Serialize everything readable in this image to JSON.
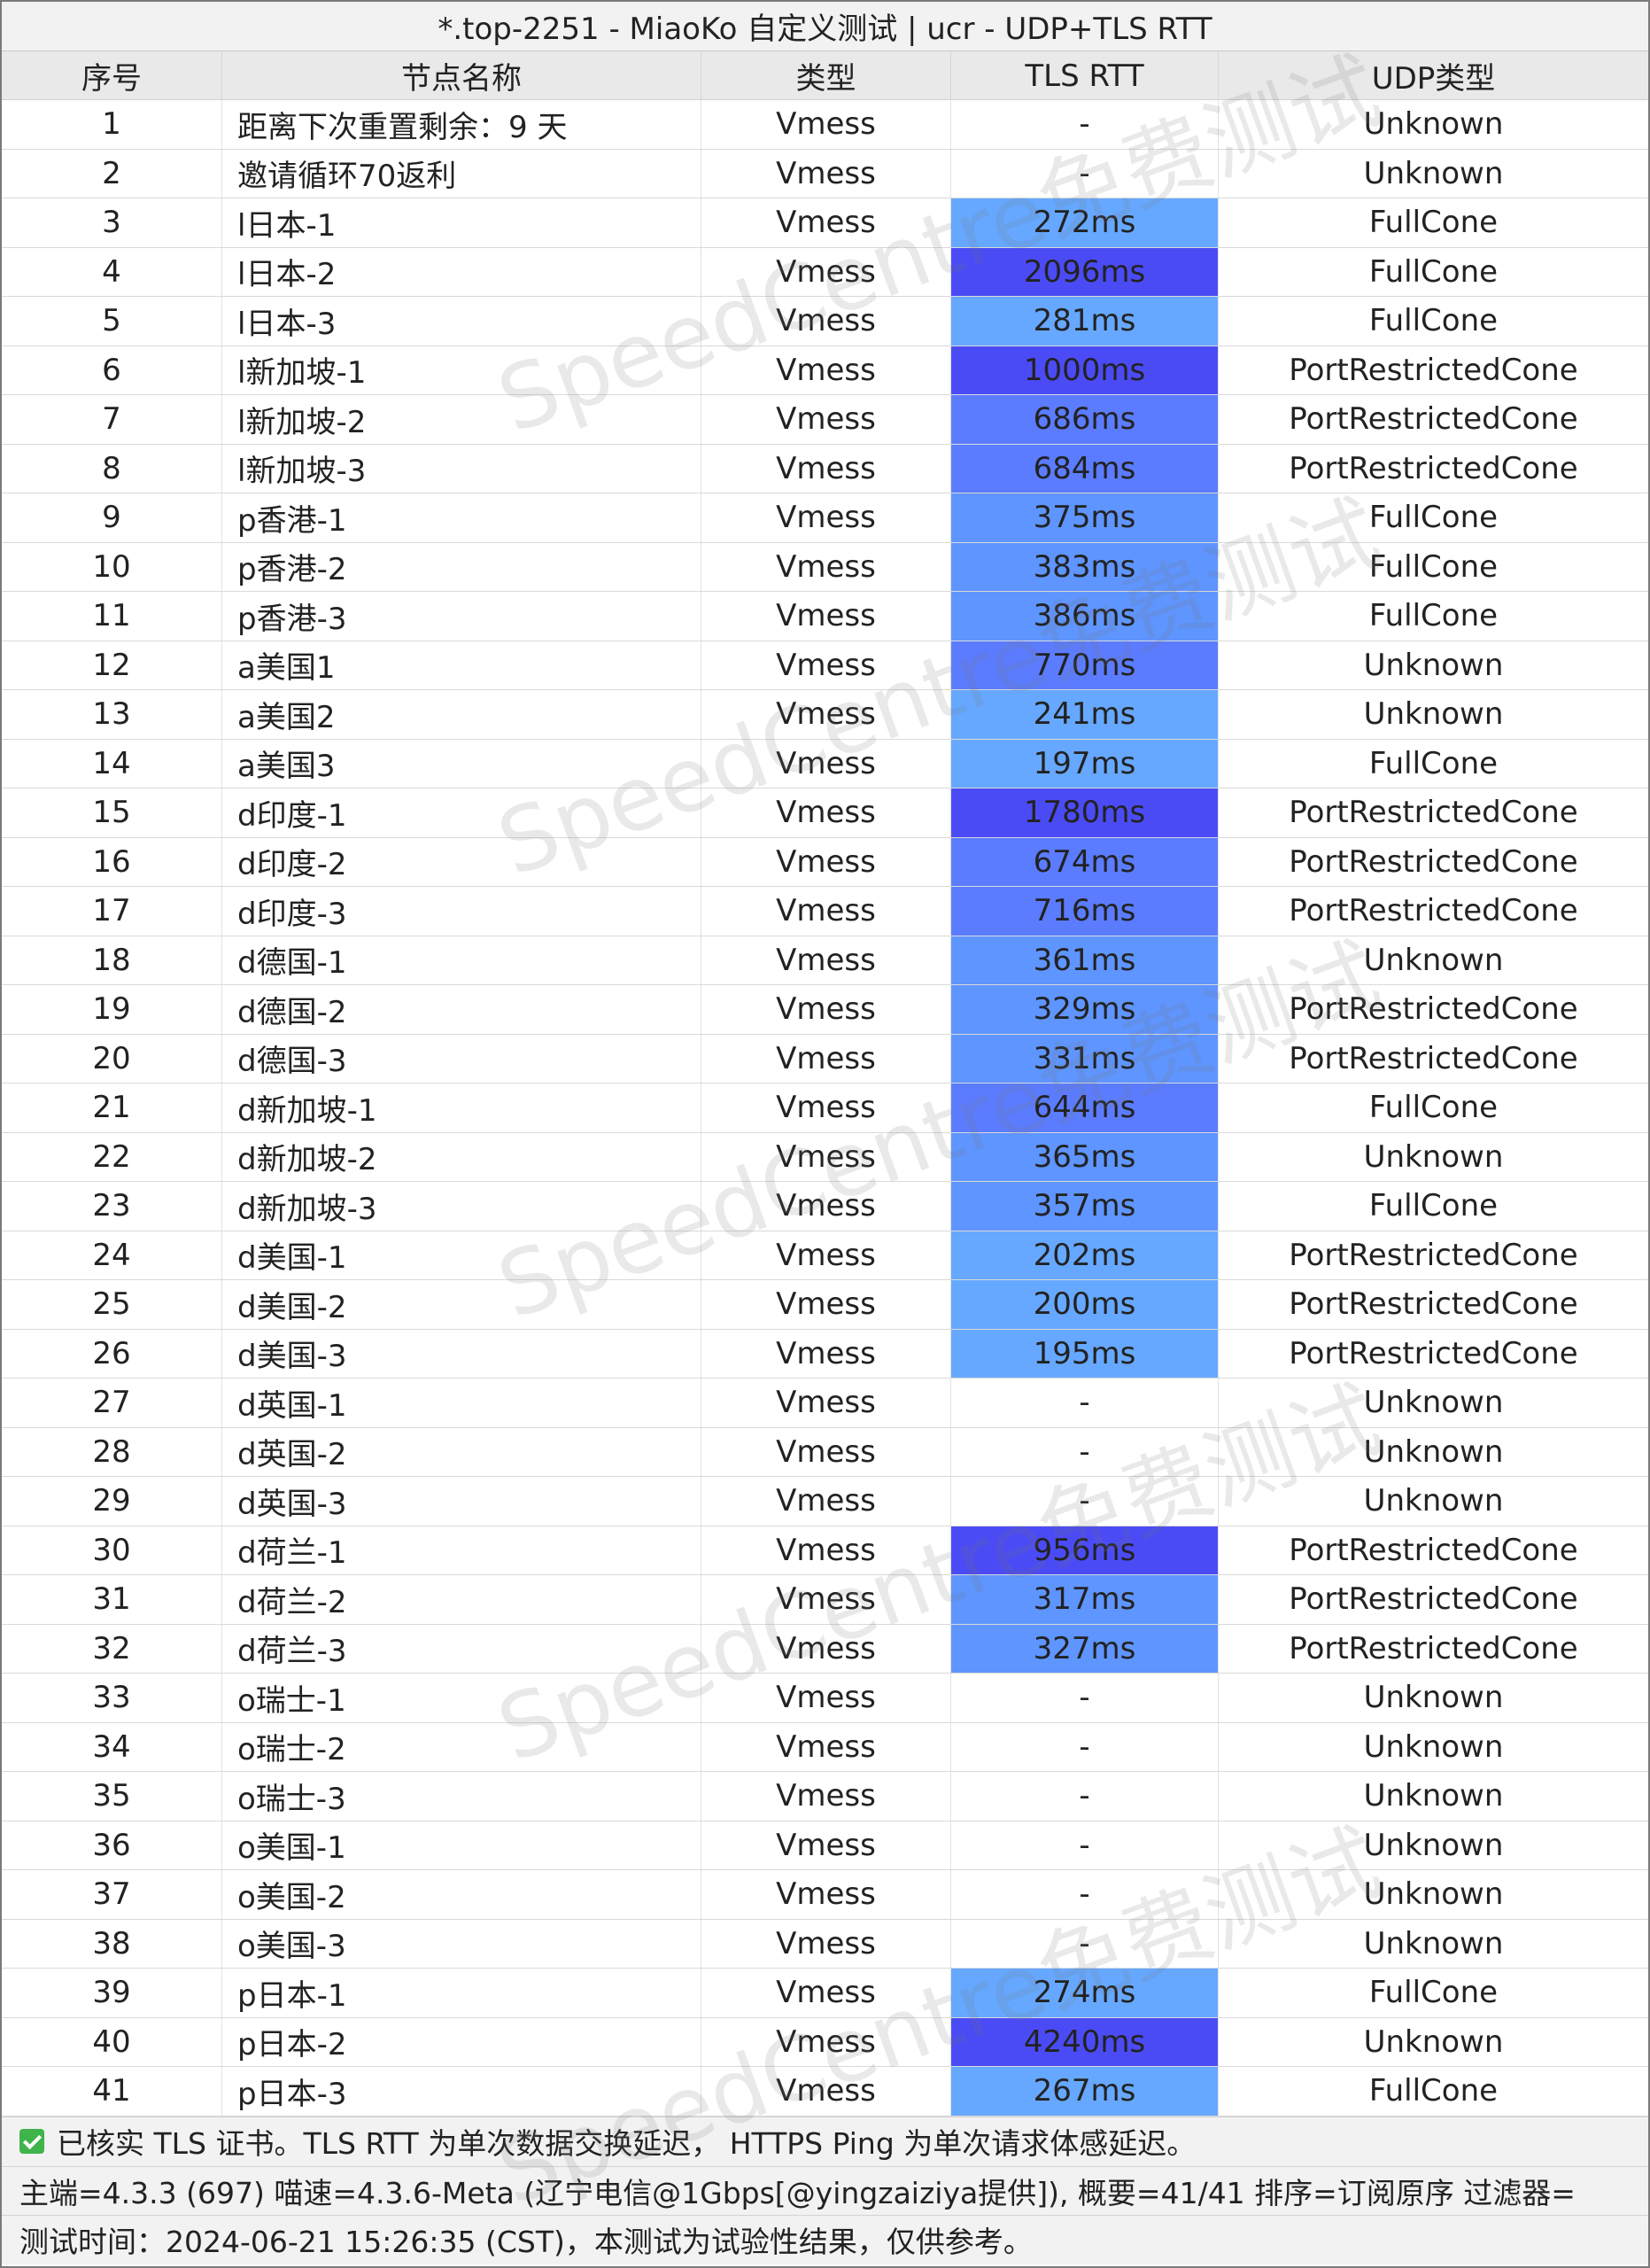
{
  "title": "*.top-2251 - MiaoKo 自定义测试 | ucr - UDP+TLS RTT",
  "headers": {
    "idx": "序号",
    "name": "节点名称",
    "type": "类型",
    "rtt": "TLS RTT",
    "udp": "UDP类型"
  },
  "rows": [
    {
      "idx": "1",
      "name": "距离下次重置剩余：9 天",
      "type": "Vmess",
      "rtt": "-",
      "udp": "Unknown"
    },
    {
      "idx": "2",
      "name": "邀请循环70返利",
      "type": "Vmess",
      "rtt": "-",
      "udp": "Unknown"
    },
    {
      "idx": "3",
      "name": "l日本-1",
      "type": "Vmess",
      "rtt": "272ms",
      "udp": "FullCone"
    },
    {
      "idx": "4",
      "name": "l日本-2",
      "type": "Vmess",
      "rtt": "2096ms",
      "udp": "FullCone"
    },
    {
      "idx": "5",
      "name": "l日本-3",
      "type": "Vmess",
      "rtt": "281ms",
      "udp": "FullCone"
    },
    {
      "idx": "6",
      "name": "l新加坡-1",
      "type": "Vmess",
      "rtt": "1000ms",
      "udp": "PortRestrictedCone"
    },
    {
      "idx": "7",
      "name": "l新加坡-2",
      "type": "Vmess",
      "rtt": "686ms",
      "udp": "PortRestrictedCone"
    },
    {
      "idx": "8",
      "name": "l新加坡-3",
      "type": "Vmess",
      "rtt": "684ms",
      "udp": "PortRestrictedCone"
    },
    {
      "idx": "9",
      "name": "p香港-1",
      "type": "Vmess",
      "rtt": "375ms",
      "udp": "FullCone"
    },
    {
      "idx": "10",
      "name": "p香港-2",
      "type": "Vmess",
      "rtt": "383ms",
      "udp": "FullCone"
    },
    {
      "idx": "11",
      "name": "p香港-3",
      "type": "Vmess",
      "rtt": "386ms",
      "udp": "FullCone"
    },
    {
      "idx": "12",
      "name": "a美国1",
      "type": "Vmess",
      "rtt": "770ms",
      "udp": "Unknown"
    },
    {
      "idx": "13",
      "name": "a美国2",
      "type": "Vmess",
      "rtt": "241ms",
      "udp": "Unknown"
    },
    {
      "idx": "14",
      "name": "a美国3",
      "type": "Vmess",
      "rtt": "197ms",
      "udp": "FullCone"
    },
    {
      "idx": "15",
      "name": "d印度-1",
      "type": "Vmess",
      "rtt": "1780ms",
      "udp": "PortRestrictedCone"
    },
    {
      "idx": "16",
      "name": "d印度-2",
      "type": "Vmess",
      "rtt": "674ms",
      "udp": "PortRestrictedCone"
    },
    {
      "idx": "17",
      "name": "d印度-3",
      "type": "Vmess",
      "rtt": "716ms",
      "udp": "PortRestrictedCone"
    },
    {
      "idx": "18",
      "name": "d德国-1",
      "type": "Vmess",
      "rtt": "361ms",
      "udp": "Unknown"
    },
    {
      "idx": "19",
      "name": "d德国-2",
      "type": "Vmess",
      "rtt": "329ms",
      "udp": "PortRestrictedCone"
    },
    {
      "idx": "20",
      "name": "d德国-3",
      "type": "Vmess",
      "rtt": "331ms",
      "udp": "PortRestrictedCone"
    },
    {
      "idx": "21",
      "name": "d新加坡-1",
      "type": "Vmess",
      "rtt": "644ms",
      "udp": "FullCone"
    },
    {
      "idx": "22",
      "name": "d新加坡-2",
      "type": "Vmess",
      "rtt": "365ms",
      "udp": "Unknown"
    },
    {
      "idx": "23",
      "name": "d新加坡-3",
      "type": "Vmess",
      "rtt": "357ms",
      "udp": "FullCone"
    },
    {
      "idx": "24",
      "name": "d美国-1",
      "type": "Vmess",
      "rtt": "202ms",
      "udp": "PortRestrictedCone"
    },
    {
      "idx": "25",
      "name": "d美国-2",
      "type": "Vmess",
      "rtt": "200ms",
      "udp": "PortRestrictedCone"
    },
    {
      "idx": "26",
      "name": "d美国-3",
      "type": "Vmess",
      "rtt": "195ms",
      "udp": "PortRestrictedCone"
    },
    {
      "idx": "27",
      "name": "d英国-1",
      "type": "Vmess",
      "rtt": "-",
      "udp": "Unknown"
    },
    {
      "idx": "28",
      "name": "d英国-2",
      "type": "Vmess",
      "rtt": "-",
      "udp": "Unknown"
    },
    {
      "idx": "29",
      "name": "d英国-3",
      "type": "Vmess",
      "rtt": "-",
      "udp": "Unknown"
    },
    {
      "idx": "30",
      "name": "d荷兰-1",
      "type": "Vmess",
      "rtt": "956ms",
      "udp": "PortRestrictedCone"
    },
    {
      "idx": "31",
      "name": "d荷兰-2",
      "type": "Vmess",
      "rtt": "317ms",
      "udp": "PortRestrictedCone"
    },
    {
      "idx": "32",
      "name": "d荷兰-3",
      "type": "Vmess",
      "rtt": "327ms",
      "udp": "PortRestrictedCone"
    },
    {
      "idx": "33",
      "name": "o瑞士-1",
      "type": "Vmess",
      "rtt": "-",
      "udp": "Unknown"
    },
    {
      "idx": "34",
      "name": "o瑞士-2",
      "type": "Vmess",
      "rtt": "-",
      "udp": "Unknown"
    },
    {
      "idx": "35",
      "name": "o瑞士-3",
      "type": "Vmess",
      "rtt": "-",
      "udp": "Unknown"
    },
    {
      "idx": "36",
      "name": "o美国-1",
      "type": "Vmess",
      "rtt": "-",
      "udp": "Unknown"
    },
    {
      "idx": "37",
      "name": "o美国-2",
      "type": "Vmess",
      "rtt": "-",
      "udp": "Unknown"
    },
    {
      "idx": "38",
      "name": "o美国-3",
      "type": "Vmess",
      "rtt": "-",
      "udp": "Unknown"
    },
    {
      "idx": "39",
      "name": "p日本-1",
      "type": "Vmess",
      "rtt": "274ms",
      "udp": "FullCone"
    },
    {
      "idx": "40",
      "name": "p日本-2",
      "type": "Vmess",
      "rtt": "4240ms",
      "udp": "Unknown"
    },
    {
      "idx": "41",
      "name": "p日本-3",
      "type": "Vmess",
      "rtt": "267ms",
      "udp": "FullCone"
    }
  ],
  "footer": {
    "check_icon": "checkbox-checked-icon",
    "line1": "已核实 TLS 证书。TLS RTT 为单次数据交换延迟， HTTPS Ping 为单次请求体感延迟。",
    "line2": "主端=4.3.3 (697) 喵速=4.3.6-Meta (辽宁电信@1Gbps[@yingzaiziya提供]), 概要=41/41 排序=订阅原序 过滤器=",
    "line3": "测试时间：2024-06-21 15:26:35 (CST)，本测试为试验性结果，仅供参考。"
  },
  "watermark": "SpeedCentre免费测试",
  "colors": {
    "rtt_fast": "#66a8ff",
    "rtt_mid": "#5b7cff",
    "rtt_slow": "#4b4bf5",
    "title_bg": "#f2f2f2",
    "header_bg": "#e9e9e9"
  }
}
